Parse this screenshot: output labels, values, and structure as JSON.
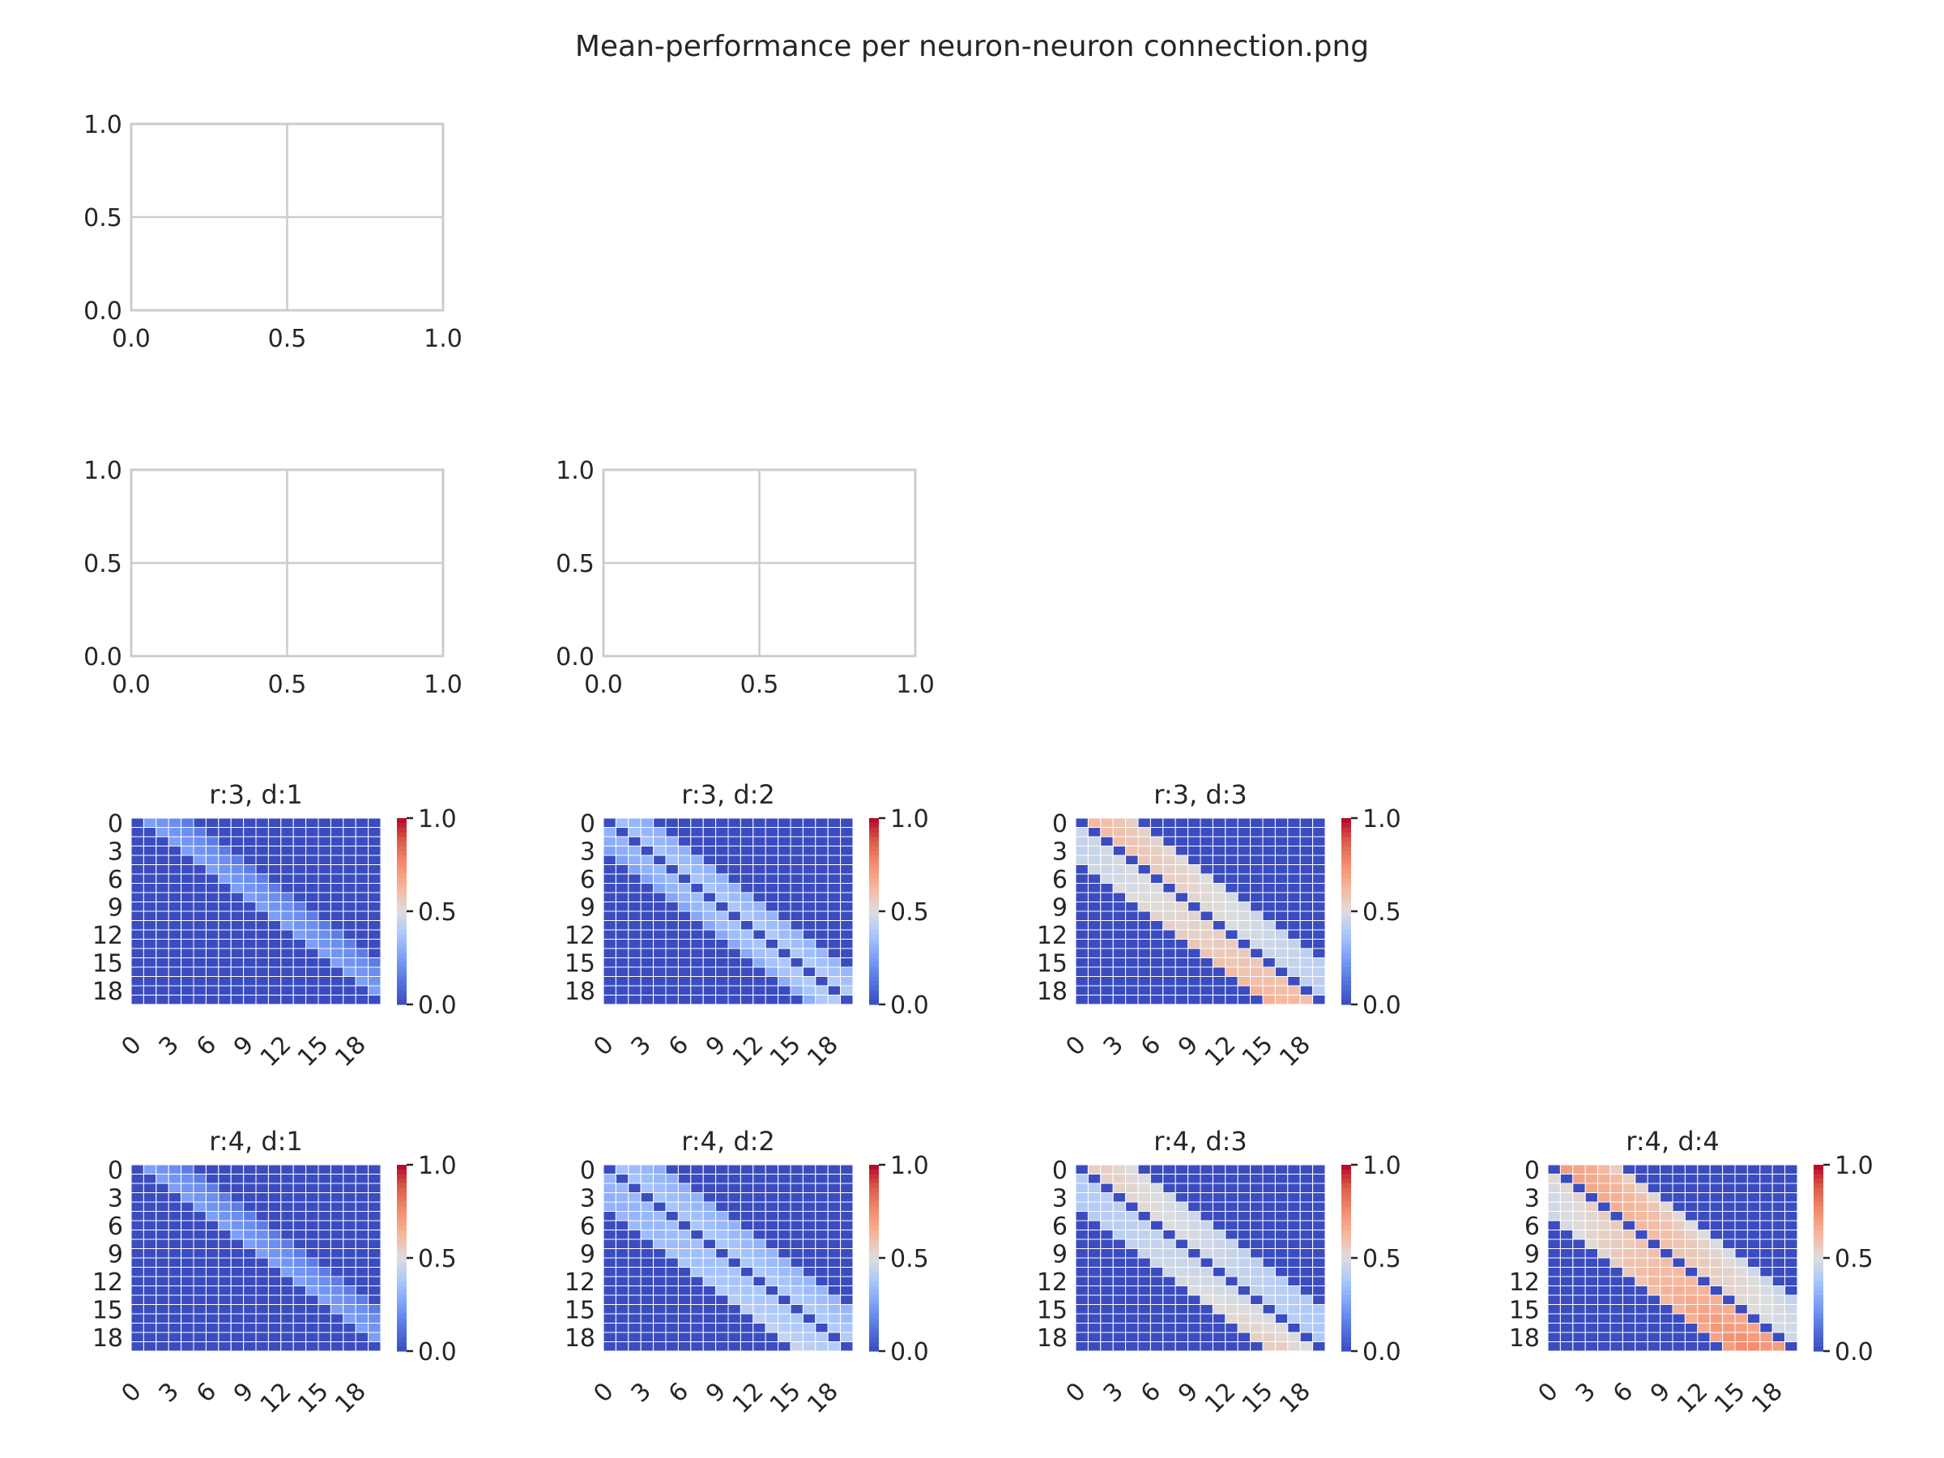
{
  "figure": {
    "title": "Mean-performance per neuron-neuron connection.png",
    "colormap": "coolwarm",
    "grid_color": "#cccccc",
    "empty_axes_ticks": [
      "0.0",
      "0.5",
      "1.0"
    ],
    "colorbar_ticks": [
      "0.0",
      "0.5",
      "1.0"
    ]
  },
  "chart_data": [
    {
      "type": "empty",
      "panel": "row1-col1",
      "xlim": [
        0,
        1
      ],
      "ylim": [
        0,
        1
      ],
      "xticks": [
        "0.0",
        "0.5",
        "1.0"
      ],
      "yticks": [
        "0.0",
        "0.5",
        "1.0"
      ],
      "grid": true
    },
    {
      "type": "empty",
      "panel": "row2-col1",
      "xlim": [
        0,
        1
      ],
      "ylim": [
        0,
        1
      ],
      "xticks": [
        "0.0",
        "0.5",
        "1.0"
      ],
      "yticks": [
        "0.0",
        "0.5",
        "1.0"
      ],
      "grid": true
    },
    {
      "type": "empty",
      "panel": "row2-col2",
      "xlim": [
        0,
        1
      ],
      "ylim": [
        0,
        1
      ],
      "xticks": [
        "0.0",
        "0.5",
        "1.0"
      ],
      "yticks": [
        "0.0",
        "0.5",
        "1.0"
      ],
      "grid": true
    },
    {
      "type": "heatmap",
      "panel": "row3-col1",
      "title": "r:3, d:1",
      "size": 20,
      "ticks": [
        "0",
        "3",
        "6",
        "9",
        "12",
        "15",
        "18"
      ],
      "colorbar_range": [
        0,
        1
      ],
      "bands": [
        {
          "offset": 1,
          "start": 0.25,
          "end": 0.25
        },
        {
          "offset": 2,
          "start": 0.22,
          "end": 0.22
        },
        {
          "offset": 3,
          "start": 0.2,
          "end": 0.2
        },
        {
          "offset": 4,
          "start": 0.15,
          "end": 0.15
        }
      ],
      "background": 0.0
    },
    {
      "type": "heatmap",
      "panel": "row3-col2",
      "title": "r:3, d:2",
      "size": 20,
      "ticks": [
        "0",
        "3",
        "6",
        "9",
        "12",
        "15",
        "18"
      ],
      "colorbar_range": [
        0,
        1
      ],
      "bands": [
        {
          "offset": 1,
          "start": 0.35,
          "end": 0.4
        },
        {
          "offset": 2,
          "start": 0.32,
          "end": 0.36
        },
        {
          "offset": 3,
          "start": 0.3,
          "end": 0.33
        },
        {
          "offset": -1,
          "start": 0.3,
          "end": 0.4
        },
        {
          "offset": -2,
          "start": 0.28,
          "end": 0.38
        },
        {
          "offset": -3,
          "start": 0.25,
          "end": 0.3
        }
      ],
      "background": 0.0
    },
    {
      "type": "heatmap",
      "panel": "row3-col3",
      "title": "r:3, d:3",
      "size": 20,
      "ticks": [
        "0",
        "3",
        "6",
        "9",
        "12",
        "15",
        "18"
      ],
      "colorbar_range": [
        0,
        1
      ],
      "bands": [
        {
          "offset": 1,
          "start": 0.62,
          "end": 0.4
        },
        {
          "offset": 2,
          "start": 0.6,
          "end": 0.4
        },
        {
          "offset": 3,
          "start": 0.58,
          "end": 0.4
        },
        {
          "offset": 4,
          "start": 0.55,
          "end": 0.38
        },
        {
          "offset": -1,
          "start": 0.45,
          "end": 0.6
        },
        {
          "offset": -2,
          "start": 0.42,
          "end": 0.62
        },
        {
          "offset": -3,
          "start": 0.4,
          "end": 0.62
        },
        {
          "offset": -4,
          "start": 0.4,
          "end": 0.65
        }
      ],
      "background": 0.0
    },
    {
      "type": "heatmap",
      "panel": "row4-col1",
      "title": "r:4, d:1",
      "size": 20,
      "ticks": [
        "0",
        "3",
        "6",
        "9",
        "12",
        "15",
        "18"
      ],
      "colorbar_range": [
        0,
        1
      ],
      "bands": [
        {
          "offset": 1,
          "start": 0.25,
          "end": 0.25
        },
        {
          "offset": 2,
          "start": 0.22,
          "end": 0.22
        },
        {
          "offset": 3,
          "start": 0.2,
          "end": 0.2
        },
        {
          "offset": 4,
          "start": 0.15,
          "end": 0.15
        }
      ],
      "background": 0.0
    },
    {
      "type": "heatmap",
      "panel": "row4-col2",
      "title": "r:4, d:2",
      "size": 20,
      "ticks": [
        "0",
        "3",
        "6",
        "9",
        "12",
        "15",
        "18"
      ],
      "colorbar_range": [
        0,
        1
      ],
      "bands": [
        {
          "offset": 1,
          "start": 0.36,
          "end": 0.4
        },
        {
          "offset": 2,
          "start": 0.34,
          "end": 0.38
        },
        {
          "offset": 3,
          "start": 0.32,
          "end": 0.35
        },
        {
          "offset": 4,
          "start": 0.3,
          "end": 0.33
        },
        {
          "offset": -1,
          "start": 0.32,
          "end": 0.4
        },
        {
          "offset": -2,
          "start": 0.3,
          "end": 0.4
        },
        {
          "offset": -3,
          "start": 0.28,
          "end": 0.42
        },
        {
          "offset": -4,
          "start": 0.28,
          "end": 0.45
        }
      ],
      "background": 0.0
    },
    {
      "type": "heatmap",
      "panel": "row4-col3",
      "title": "r:4, d:3",
      "size": 20,
      "ticks": [
        "0",
        "3",
        "6",
        "9",
        "12",
        "15",
        "18"
      ],
      "colorbar_range": [
        0,
        1
      ],
      "bands": [
        {
          "offset": 1,
          "start": 0.55,
          "end": 0.38
        },
        {
          "offset": 2,
          "start": 0.55,
          "end": 0.36
        },
        {
          "offset": 3,
          "start": 0.52,
          "end": 0.36
        },
        {
          "offset": 4,
          "start": 0.5,
          "end": 0.35
        },
        {
          "offset": -1,
          "start": 0.4,
          "end": 0.5
        },
        {
          "offset": -2,
          "start": 0.38,
          "end": 0.52
        },
        {
          "offset": -3,
          "start": 0.36,
          "end": 0.55
        },
        {
          "offset": -4,
          "start": 0.35,
          "end": 0.55
        }
      ],
      "background": 0.0
    },
    {
      "type": "heatmap",
      "panel": "row4-col4",
      "title": "r:4, d:4",
      "size": 20,
      "ticks": [
        "0",
        "3",
        "6",
        "9",
        "12",
        "15",
        "18"
      ],
      "colorbar_range": [
        0,
        1
      ],
      "bands": [
        {
          "offset": 1,
          "start": 0.7,
          "end": 0.45
        },
        {
          "offset": 2,
          "start": 0.68,
          "end": 0.45
        },
        {
          "offset": 3,
          "start": 0.66,
          "end": 0.44
        },
        {
          "offset": 4,
          "start": 0.62,
          "end": 0.42
        },
        {
          "offset": 5,
          "start": 0.55,
          "end": 0.4
        },
        {
          "offset": -1,
          "start": 0.5,
          "end": 0.7
        },
        {
          "offset": -2,
          "start": 0.45,
          "end": 0.72
        },
        {
          "offset": -3,
          "start": 0.42,
          "end": 0.75
        },
        {
          "offset": -4,
          "start": 0.4,
          "end": 0.75
        },
        {
          "offset": -5,
          "start": 0.38,
          "end": 0.7
        }
      ],
      "background": 0.0
    }
  ]
}
